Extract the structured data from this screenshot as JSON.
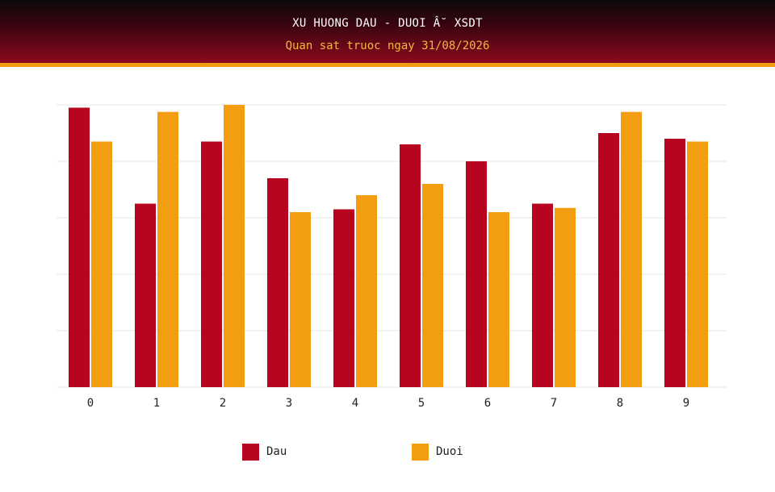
{
  "header": {
    "title": "XU HUONG DAU - DUOI Â˘ XSDT",
    "subtitle": "Quan sat truoc ngay 31/08/2026"
  },
  "colors": {
    "dau": "#b8051f",
    "duoi": "#f29d12",
    "grid": "#e6e6e6"
  },
  "chart_data": {
    "type": "bar",
    "categories": [
      "0",
      "1",
      "2",
      "3",
      "4",
      "5",
      "6",
      "7",
      "8",
      "9"
    ],
    "series": [
      {
        "name": "Dau",
        "values": [
          9.9,
          6.5,
          8.7,
          7.4,
          6.3,
          8.6,
          8.0,
          6.5,
          9.0,
          8.8
        ]
      },
      {
        "name": "Duoi",
        "values": [
          8.7,
          9.75,
          10.0,
          6.2,
          6.8,
          7.2,
          6.2,
          6.35,
          9.75,
          8.7
        ]
      }
    ],
    "ylim": [
      0,
      10
    ],
    "grid": true,
    "legend": "bottom"
  }
}
